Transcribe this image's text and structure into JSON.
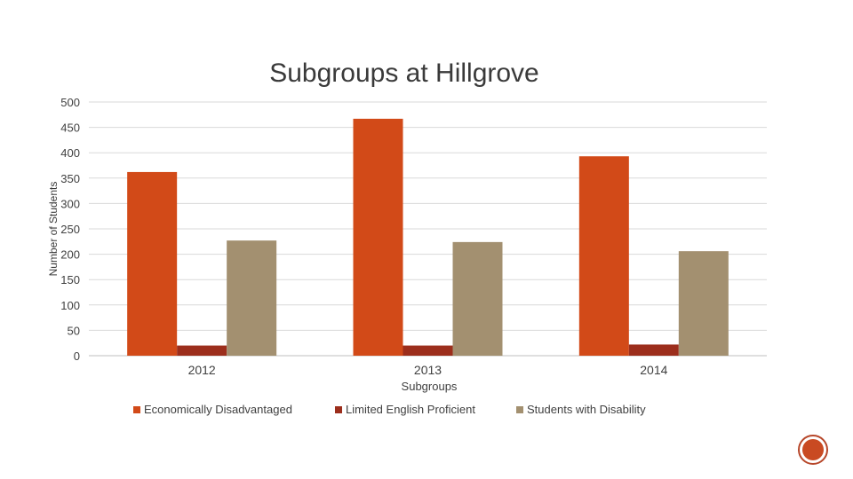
{
  "chart_data": {
    "type": "bar",
    "title": "Subgroups at Hillgrove",
    "xlabel": "Subgroups",
    "ylabel": "Number of Students",
    "categories": [
      "2012",
      "2013",
      "2014"
    ],
    "series": [
      {
        "name": "Economically Disadvantaged",
        "values": [
          362,
          467,
          393
        ],
        "color": "#d24a18"
      },
      {
        "name": "Limited English Proficient",
        "values": [
          20,
          20,
          22
        ],
        "color": "#9c2e1c"
      },
      {
        "name": "Students with Disability",
        "values": [
          227,
          224,
          206
        ],
        "color": "#a39070"
      }
    ],
    "yticks": [
      "0",
      "50",
      "100",
      "150",
      "200",
      "250",
      "300",
      "350",
      "400",
      "450",
      "500"
    ],
    "ylim": [
      0,
      500
    ],
    "grid": true,
    "legend_position": "bottom"
  }
}
